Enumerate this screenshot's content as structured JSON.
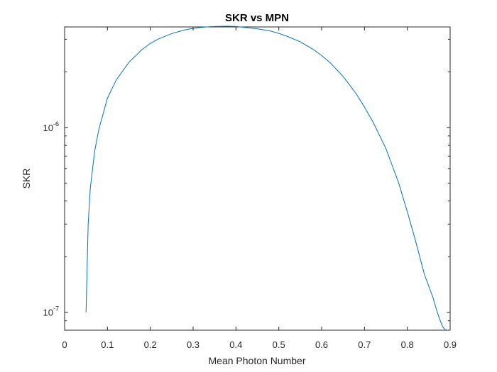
{
  "chart_data": {
    "type": "line",
    "title": "SKR vs MPN",
    "xlabel": "Mean Photon Number",
    "ylabel": "SKR",
    "xlim": [
      0,
      0.9
    ],
    "ylim": [
      8e-08,
      3.5e-06
    ],
    "yscale": "log",
    "grid": false,
    "box": true,
    "x_ticks": [
      "0",
      "0.1",
      "0.2",
      "0.3",
      "0.4",
      "0.5",
      "0.6",
      "0.7",
      "0.8",
      "0.9"
    ],
    "y_ticks": [
      {
        "base": "10",
        "exp": "-7",
        "value": 1e-07
      },
      {
        "base": "10",
        "exp": "-6",
        "value": 1e-06
      }
    ],
    "series": [
      {
        "color": "#0072BD",
        "x": [
          0.05,
          0.055,
          0.06,
          0.07,
          0.08,
          0.1,
          0.12,
          0.15,
          0.18,
          0.2,
          0.22,
          0.25,
          0.28,
          0.3,
          0.33,
          0.35,
          0.38,
          0.4,
          0.42,
          0.45,
          0.48,
          0.5,
          0.52,
          0.55,
          0.58,
          0.6,
          0.62,
          0.65,
          0.68,
          0.7,
          0.72,
          0.75,
          0.78,
          0.8,
          0.82,
          0.84,
          0.86,
          0.87,
          0.88,
          0.885,
          0.89
        ],
        "y": [
          1e-07,
          3e-07,
          4.7e-07,
          7.4e-07,
          9.8e-07,
          1.44e-06,
          1.8e-06,
          2.25e-06,
          2.63e-06,
          2.85e-06,
          3.02e-06,
          3.22e-06,
          3.37e-06,
          3.44e-06,
          3.5e-06,
          3.52e-06,
          3.53e-06,
          3.52e-06,
          3.48e-06,
          3.42e-06,
          3.33e-06,
          3.23e-06,
          3.11e-06,
          2.91e-06,
          2.65e-06,
          2.45e-06,
          2.24e-06,
          1.89e-06,
          1.53e-06,
          1.29e-06,
          1.07e-06,
          7.7e-07,
          5e-07,
          3.5e-07,
          2.4e-07,
          1.6e-07,
          1.2e-07,
          1e-07,
          8.6e-08,
          8.2e-08,
          8e-08
        ]
      }
    ]
  }
}
